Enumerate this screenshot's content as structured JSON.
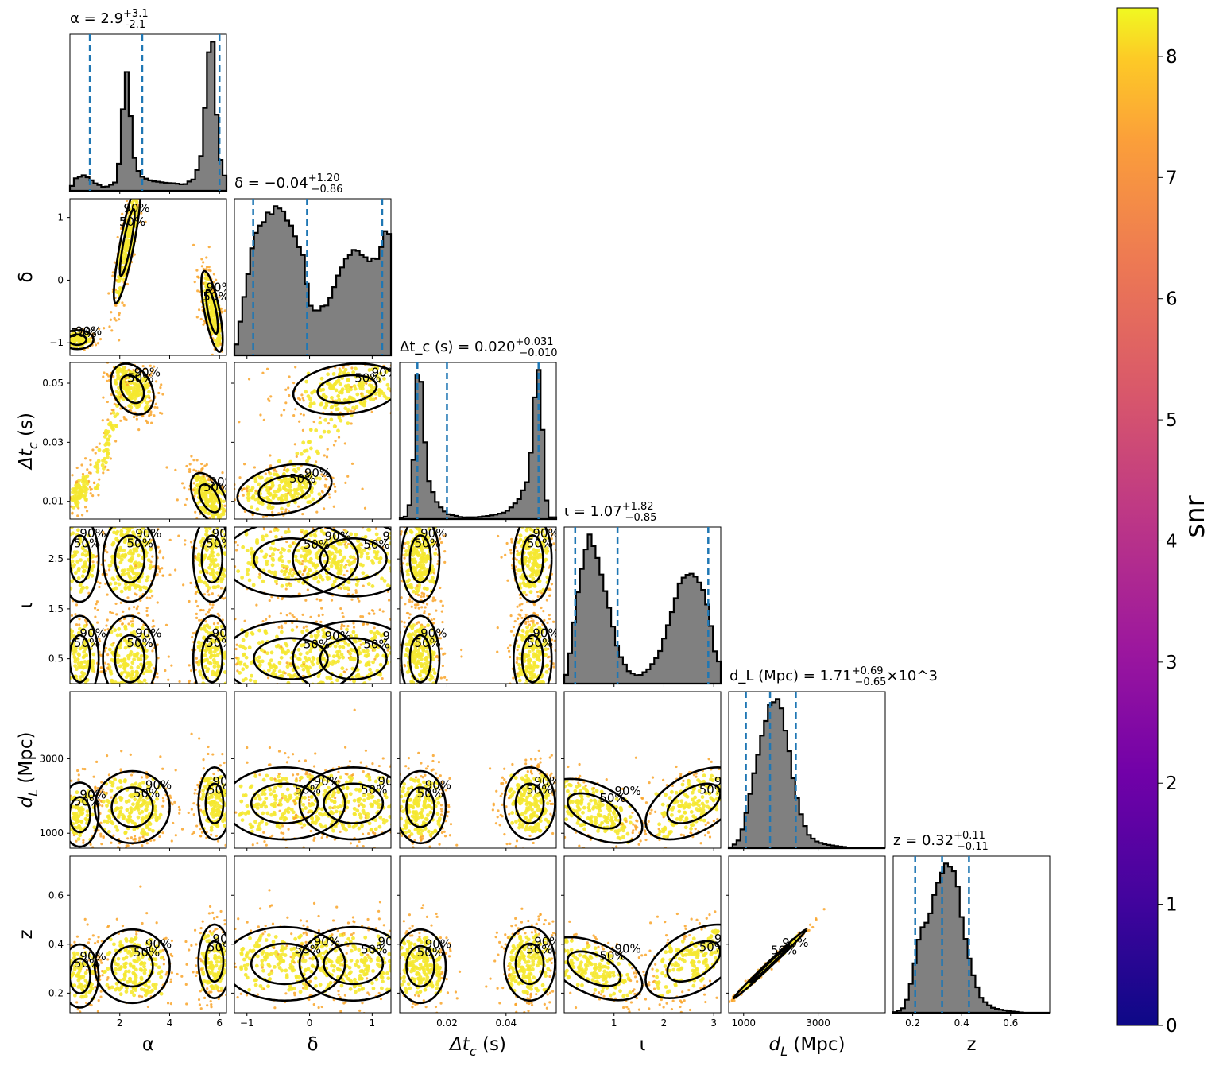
{
  "chart_data": {
    "type": "scatter",
    "chart_kind": "corner plot (posterior samples colored by snr)",
    "parameters": [
      {
        "key": "alpha",
        "label": "α",
        "range": [
          0.0,
          6.28
        ],
        "ticks": [
          2,
          4,
          6
        ],
        "tick_labels": [
          "2",
          "4",
          "6"
        ],
        "summary": {
          "median": 2.9,
          "plus": 3.1,
          "minus": 2.1
        },
        "title": "α = 2.9^{+3.1}_{-2.1}",
        "quantiles": [
          0.8,
          2.9,
          6.0
        ]
      },
      {
        "key": "delta",
        "label": "δ",
        "range": [
          -1.2,
          1.3
        ],
        "ticks": [
          -1,
          0,
          1
        ],
        "tick_labels": [
          "−1",
          "0",
          "1"
        ],
        "summary": {
          "median": -0.04,
          "plus": 1.2,
          "minus": 0.86
        },
        "title": "δ = −0.04^{+1.20}_{−0.86}",
        "quantiles": [
          -0.9,
          -0.04,
          1.16
        ]
      },
      {
        "key": "dtc",
        "label": "Δt_c (s)",
        "range": [
          0.004,
          0.057
        ],
        "ticks": [
          0.01,
          0.03,
          0.05
        ],
        "tick_labels": [
          "0.01",
          "0.03",
          "0.05"
        ],
        "bottom_ticks": [
          0.02,
          0.04
        ],
        "bottom_tick_labels": [
          "0.02",
          "0.04"
        ],
        "summary": {
          "median": 0.02,
          "plus": 0.031,
          "minus": 0.01
        },
        "title": "Δt_c (s) = 0.020^{+0.031}_{−0.010}",
        "quantiles": [
          0.01,
          0.02,
          0.051
        ]
      },
      {
        "key": "iota",
        "label": "ι",
        "range": [
          0.0,
          3.14
        ],
        "ticks": [
          0.5,
          1.5,
          2.5
        ],
        "tick_labels": [
          "0.5",
          "1.5",
          "2.5"
        ],
        "bottom_ticks": [
          1,
          2,
          3
        ],
        "bottom_tick_labels": [
          "1",
          "2",
          "3"
        ],
        "summary": {
          "median": 1.07,
          "plus": 1.82,
          "minus": 0.85
        },
        "title": "ι = 1.07^{+1.82}_{−0.85}",
        "quantiles": [
          0.22,
          1.07,
          2.89
        ]
      },
      {
        "key": "dL",
        "label": "d_L (Mpc)",
        "range": [
          600,
          4800
        ],
        "ticks": [
          1000,
          3000
        ],
        "tick_labels": [
          "1000",
          "3000"
        ],
        "summary": {
          "median": 1.71,
          "plus": 0.69,
          "minus": 0.65,
          "scale": "×10^3"
        },
        "title": "d_L (Mpc) = 1.71^{+0.69}_{−0.65}×10^3",
        "quantiles": [
          1060,
          1710,
          2400
        ]
      },
      {
        "key": "z",
        "label": "z",
        "range": [
          0.12,
          0.76
        ],
        "ticks": [
          0.2,
          0.4,
          0.6
        ],
        "tick_labels": [
          "0.2",
          "0.4",
          "0.6"
        ],
        "summary": {
          "median": 0.32,
          "plus": 0.11,
          "minus": 0.11
        },
        "title": "z = 0.32^{+0.11}_{−0.11}",
        "quantiles": [
          0.21,
          0.32,
          0.43
        ]
      }
    ],
    "histograms": [
      {
        "param": "alpha",
        "x": [
          0.2,
          0.6,
          1.0,
          1.4,
          1.8,
          2.0,
          2.1,
          2.2,
          2.4,
          2.6,
          2.8,
          3.0,
          3.4,
          4.0,
          4.6,
          5.0,
          5.3,
          5.5,
          5.6,
          5.7,
          5.8,
          5.9,
          6.1
        ],
        "y": [
          0.08,
          0.1,
          0.05,
          0.02,
          0.05,
          0.2,
          0.45,
          0.9,
          0.55,
          0.2,
          0.1,
          0.08,
          0.06,
          0.05,
          0.04,
          0.08,
          0.25,
          0.75,
          0.95,
          1.0,
          0.8,
          0.45,
          0.1
        ]
      },
      {
        "param": "delta",
        "x": [
          -1.1,
          -0.9,
          -0.7,
          -0.5,
          -0.3,
          -0.1,
          0.0,
          0.1,
          0.3,
          0.5,
          0.7,
          0.9,
          1.1,
          1.2
        ],
        "y": [
          0.2,
          0.65,
          0.8,
          0.85,
          0.75,
          0.55,
          0.3,
          0.25,
          0.3,
          0.5,
          0.6,
          0.55,
          0.55,
          0.7
        ]
      },
      {
        "param": "dtc",
        "x": [
          0.007,
          0.009,
          0.0105,
          0.012,
          0.014,
          0.017,
          0.02,
          0.025,
          0.03,
          0.035,
          0.04,
          0.044,
          0.047,
          0.049,
          0.0505,
          0.052,
          0.054
        ],
        "y": [
          0.02,
          0.4,
          1.0,
          0.55,
          0.2,
          0.08,
          0.03,
          0.01,
          0.01,
          0.02,
          0.04,
          0.1,
          0.2,
          0.45,
          0.98,
          0.6,
          0.01
        ]
      },
      {
        "param": "iota",
        "x": [
          0.1,
          0.3,
          0.5,
          0.7,
          0.9,
          1.1,
          1.3,
          1.5,
          1.7,
          1.9,
          2.1,
          2.3,
          2.5,
          2.7,
          2.9,
          3.05
        ],
        "y": [
          0.15,
          0.7,
          1.0,
          0.8,
          0.5,
          0.2,
          0.08,
          0.05,
          0.1,
          0.2,
          0.4,
          0.65,
          0.75,
          0.7,
          0.5,
          0.15
        ]
      },
      {
        "param": "dL",
        "x": [
          700,
          900,
          1100,
          1300,
          1500,
          1700,
          1900,
          2100,
          2300,
          2500,
          2700,
          2900,
          3100,
          3300,
          3600,
          4000
        ],
        "y": [
          0.01,
          0.06,
          0.25,
          0.5,
          0.75,
          0.9,
          1.0,
          0.8,
          0.5,
          0.25,
          0.1,
          0.05,
          0.03,
          0.02,
          0.01,
          0.0
        ]
      },
      {
        "param": "z",
        "x": [
          0.14,
          0.16,
          0.18,
          0.2,
          0.22,
          0.24,
          0.26,
          0.28,
          0.3,
          0.32,
          0.34,
          0.36,
          0.38,
          0.4,
          0.42,
          0.44,
          0.46,
          0.48,
          0.5,
          0.53,
          0.56,
          0.6,
          0.65,
          0.7
        ],
        "y": [
          0.01,
          0.03,
          0.1,
          0.25,
          0.45,
          0.55,
          0.6,
          0.7,
          0.85,
          0.95,
          1.0,
          0.95,
          0.85,
          0.65,
          0.45,
          0.3,
          0.18,
          0.1,
          0.06,
          0.03,
          0.02,
          0.01,
          0.0,
          0.0
        ]
      }
    ],
    "contour_levels": [
      "50%",
      "90%"
    ],
    "colorbar": {
      "label": "snr",
      "range": [
        0,
        8.4
      ],
      "ticks": [
        0,
        1,
        2,
        3,
        4,
        5,
        6,
        7,
        8
      ],
      "tick_labels": [
        "0",
        "1",
        "2",
        "3",
        "4",
        "5",
        "6",
        "7",
        "8"
      ],
      "colormap": "plasma"
    },
    "colors": {
      "hist_fill": "#808080",
      "quantile_line": "#1f77b4",
      "contour": "#000000",
      "scatter_main": "#f5e830",
      "scatter_edge": "#f9a52a"
    }
  }
}
